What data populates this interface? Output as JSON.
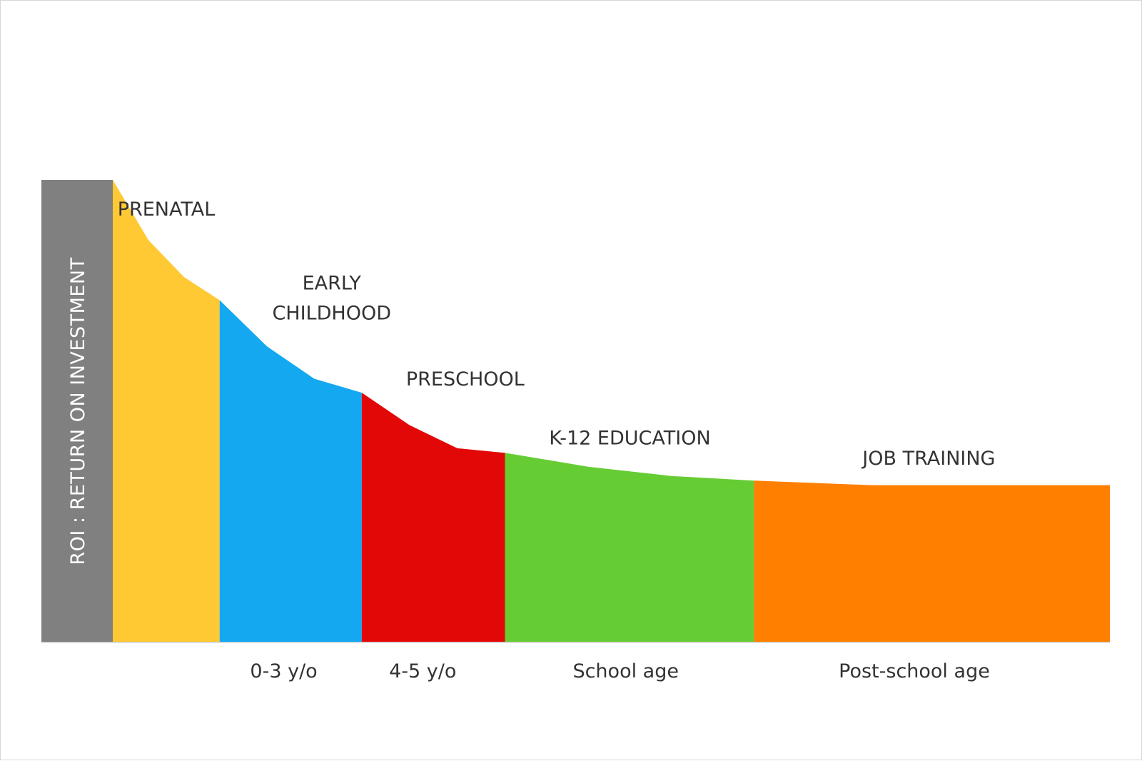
{
  "chart_data": {
    "type": "area",
    "title": "",
    "xlabel": "",
    "ylabel": "ROI : RETURN ON INVESTMENT",
    "ylabel_bar_color": "#808080",
    "grid": false,
    "legend": "none",
    "ylim": [
      0,
      100
    ],
    "segments": [
      {
        "name": "PRENATAL",
        "color": "#FFC933",
        "x_start": 0,
        "x_end": 1,
        "values": [
          100,
          87,
          79,
          74
        ]
      },
      {
        "name": "EARLY CHILDHOOD",
        "color": "#13A8F0",
        "x_start": 1,
        "x_end": 2.33,
        "values": [
          74,
          64,
          57,
          54
        ]
      },
      {
        "name": "PRESCHOOL",
        "color": "#E30808",
        "x_start": 2.33,
        "x_end": 3.67,
        "values": [
          54,
          47,
          42,
          41
        ]
      },
      {
        "name": "K-12 EDUCATION",
        "color": "#66CC33",
        "x_start": 3.67,
        "x_end": 6,
        "values": [
          41,
          38,
          36,
          35
        ]
      },
      {
        "name": "JOB TRAINING",
        "color": "#FF7F00",
        "x_start": 6,
        "x_end": 9.33,
        "values": [
          35,
          34,
          34,
          34
        ]
      }
    ],
    "x_tick_labels": [
      {
        "label": "0-3 y/o",
        "x": 1.6
      },
      {
        "label": "4-5 y/o",
        "x": 2.9
      },
      {
        "label": "School age",
        "x": 4.8
      },
      {
        "label": "Post-school age",
        "x": 7.5
      }
    ]
  }
}
